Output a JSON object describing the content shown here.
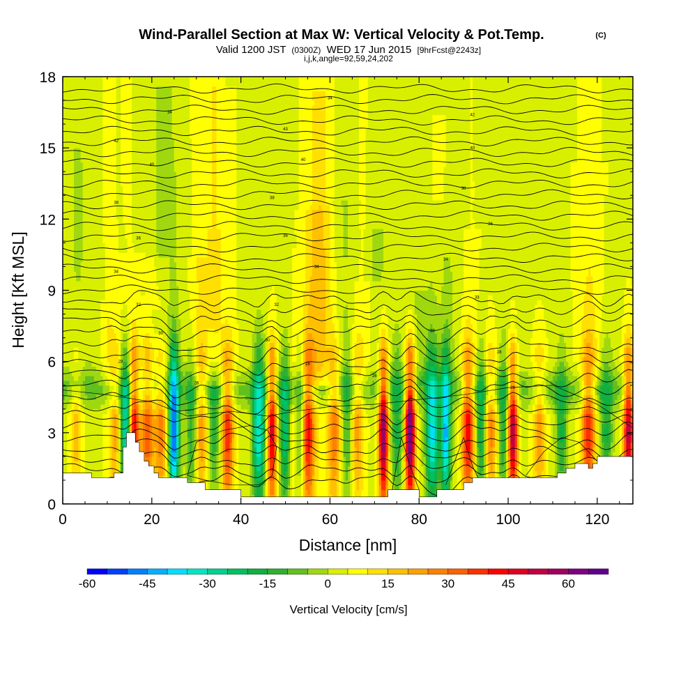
{
  "header": {
    "title": "Wind-Parallel Section at Max W: Vertical Velocity & Pot.Temp.",
    "title_mark": "(C)",
    "valid_prefix": "Valid 1200 JST",
    "valid_utc": "(0300Z)",
    "valid_date": "WED 17 Jun 2015",
    "valid_fcst": "[9hrFcst@2243z]",
    "params": "i,j,k,angle=92,59,24,202"
  },
  "chart_data": {
    "type": "heatmap",
    "xlabel": "Distance [nm]",
    "ylabel": "Height [Kft MSL]",
    "xlim": [
      0,
      128
    ],
    "ylim": [
      0,
      18
    ],
    "x_ticks": [
      "0",
      "20",
      "40",
      "60",
      "80",
      "100",
      "120"
    ],
    "y_ticks": [
      "0",
      "3",
      "6",
      "9",
      "12",
      "15",
      "18"
    ],
    "x_tick_values": [
      0,
      20,
      40,
      60,
      80,
      100,
      120
    ],
    "y_tick_values": [
      0,
      3,
      6,
      9,
      12,
      15,
      18
    ],
    "colorbar": {
      "label": "Vertical Velocity [cm/s]",
      "tick_labels": [
        "-60",
        "-45",
        "-30",
        "-15",
        "0",
        "15",
        "30",
        "45",
        "60"
      ],
      "tick_values": [
        -60,
        -45,
        -30,
        -15,
        0,
        15,
        30,
        45,
        60
      ],
      "min": -60,
      "max": 70,
      "step": 5,
      "colors": [
        "#0000ff",
        "#0040ff",
        "#0080ff",
        "#00b0ff",
        "#00e0ff",
        "#00e8c0",
        "#00d090",
        "#00c060",
        "#10b040",
        "#30b030",
        "#60c020",
        "#a0d810",
        "#d8f000",
        "#ffff00",
        "#ffe000",
        "#ffc000",
        "#ffa000",
        "#ff8000",
        "#ff6000",
        "#ff3000",
        "#ff0000",
        "#e00020",
        "#c00040",
        "#a00060",
        "#800080",
        "#600090"
      ]
    },
    "updraft_columns": [
      {
        "x": 3,
        "w": 15
      },
      {
        "x": 12,
        "w": 20
      },
      {
        "x": 16,
        "w": 45
      },
      {
        "x": 19,
        "w": 30
      },
      {
        "x": 22,
        "w": 25
      },
      {
        "x": 31,
        "w": 20
      },
      {
        "x": 37,
        "w": 35
      },
      {
        "x": 47,
        "w": 45
      },
      {
        "x": 52,
        "w": 20
      },
      {
        "x": 55,
        "w": 40
      },
      {
        "x": 61,
        "w": 25
      },
      {
        "x": 66,
        "w": 20
      },
      {
        "x": 72,
        "w": 60
      },
      {
        "x": 78,
        "w": 65
      },
      {
        "x": 91,
        "w": 40
      },
      {
        "x": 96,
        "w": 25
      },
      {
        "x": 101,
        "w": 55
      },
      {
        "x": 107,
        "w": 20
      },
      {
        "x": 118,
        "w": 35
      },
      {
        "x": 127,
        "w": 50
      }
    ],
    "downdraft_columns": [
      {
        "x": 14,
        "w": -40
      },
      {
        "x": 25,
        "w": -55
      },
      {
        "x": 29,
        "w": -20
      },
      {
        "x": 34,
        "w": -20
      },
      {
        "x": 44,
        "w": -40
      },
      {
        "x": 50,
        "w": -30
      },
      {
        "x": 53,
        "w": -25
      },
      {
        "x": 64,
        "w": -15
      },
      {
        "x": 75,
        "w": -20
      },
      {
        "x": 83,
        "w": -40
      },
      {
        "x": 86,
        "w": -45
      },
      {
        "x": 94,
        "w": -25
      },
      {
        "x": 99,
        "w": -20
      },
      {
        "x": 112,
        "w": -20
      },
      {
        "x": 122,
        "w": -20
      }
    ],
    "terrain": [
      [
        0,
        1.3
      ],
      [
        6.5,
        1.3
      ],
      [
        6.5,
        1.1
      ],
      [
        11.5,
        1.1
      ],
      [
        11.5,
        1.3
      ],
      [
        13.5,
        1.3
      ],
      [
        13.5,
        2.4
      ],
      [
        14.3,
        2.4
      ],
      [
        14.3,
        3.0
      ],
      [
        16.3,
        3.0
      ],
      [
        16.3,
        2.6
      ],
      [
        17.2,
        2.6
      ],
      [
        17.2,
        2.2
      ],
      [
        18.3,
        2.2
      ],
      [
        18.3,
        1.8
      ],
      [
        19.3,
        1.8
      ],
      [
        19.3,
        1.6
      ],
      [
        20.5,
        1.6
      ],
      [
        20.5,
        1.3
      ],
      [
        21.5,
        1.3
      ],
      [
        21.5,
        1.1
      ],
      [
        28,
        1.1
      ],
      [
        28,
        0.9
      ],
      [
        32,
        0.9
      ],
      [
        32,
        0.6
      ],
      [
        40,
        0.6
      ],
      [
        40,
        0.3
      ],
      [
        73,
        0.3
      ],
      [
        73,
        0.6
      ],
      [
        80,
        0.6
      ],
      [
        80,
        0.3
      ],
      [
        84,
        0.3
      ],
      [
        84,
        0.6
      ],
      [
        90,
        0.6
      ],
      [
        90,
        0.9
      ],
      [
        92,
        0.9
      ],
      [
        92,
        1.1
      ],
      [
        111,
        1.1
      ],
      [
        111,
        1.3
      ],
      [
        113,
        1.3
      ],
      [
        113,
        1.5
      ],
      [
        115,
        1.5
      ],
      [
        115,
        1.7
      ],
      [
        118,
        1.7
      ],
      [
        118,
        1.5
      ],
      [
        119,
        1.5
      ],
      [
        119,
        1.7
      ],
      [
        120,
        1.7
      ],
      [
        120,
        2.0
      ],
      [
        128,
        2.0
      ]
    ],
    "theta_contours": {
      "count": 38,
      "base_km_like": 1.0,
      "top": 17.5
    },
    "theta_labels": [
      {
        "x": 60,
        "y": 17.1,
        "text": "34"
      },
      {
        "x": 24,
        "y": 16.5,
        "text": "34"
      },
      {
        "x": 92,
        "y": 16.4,
        "text": "42"
      },
      {
        "x": 50,
        "y": 15.8,
        "text": "43"
      },
      {
        "x": 12,
        "y": 15.3,
        "text": "42"
      },
      {
        "x": 92,
        "y": 15.0,
        "text": "40"
      },
      {
        "x": 54,
        "y": 14.5,
        "text": "40"
      },
      {
        "x": 20,
        "y": 14.3,
        "text": "40"
      },
      {
        "x": 90,
        "y": 13.3,
        "text": "38"
      },
      {
        "x": 47,
        "y": 12.9,
        "text": "38"
      },
      {
        "x": 12,
        "y": 12.7,
        "text": "38"
      },
      {
        "x": 96,
        "y": 11.8,
        "text": "36"
      },
      {
        "x": 50,
        "y": 11.3,
        "text": "36"
      },
      {
        "x": 17,
        "y": 11.2,
        "text": "36"
      },
      {
        "x": 86,
        "y": 10.3,
        "text": "34"
      },
      {
        "x": 57,
        "y": 10.0,
        "text": "34"
      },
      {
        "x": 12,
        "y": 9.8,
        "text": "34"
      },
      {
        "x": 93,
        "y": 8.7,
        "text": "33"
      },
      {
        "x": 48,
        "y": 8.4,
        "text": "32"
      },
      {
        "x": 17,
        "y": 8.4,
        "text": "32"
      },
      {
        "x": 83,
        "y": 7.3,
        "text": "30"
      },
      {
        "x": 46,
        "y": 6.9,
        "text": "30"
      },
      {
        "x": 22,
        "y": 7.2,
        "text": "30"
      },
      {
        "x": 98,
        "y": 6.4,
        "text": "28"
      },
      {
        "x": 55,
        "y": 5.9,
        "text": "28"
      },
      {
        "x": 13,
        "y": 6.0,
        "text": "28"
      },
      {
        "x": 70,
        "y": 5.4,
        "text": "26"
      },
      {
        "x": 101,
        "y": 4.9,
        "text": "26"
      },
      {
        "x": 30,
        "y": 5.1,
        "text": "26"
      }
    ]
  }
}
